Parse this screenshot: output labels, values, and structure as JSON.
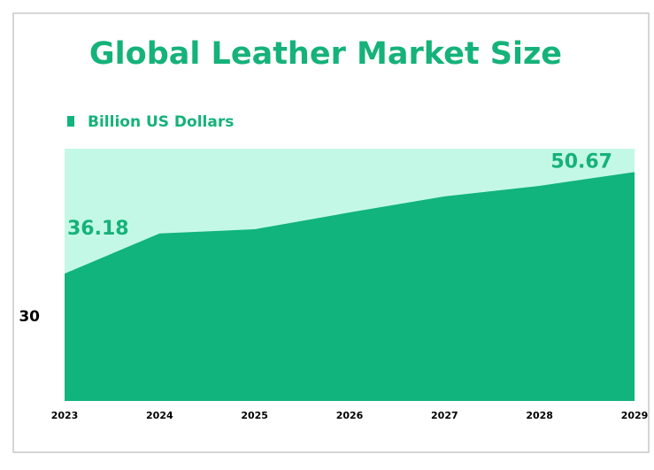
{
  "chart_data": {
    "type": "area",
    "title": "Global Leather Market Size",
    "categories": [
      "2023",
      "2024",
      "2025",
      "2026",
      "2027",
      "2028",
      "2029"
    ],
    "series": [
      {
        "name": "Billion US Dollars",
        "color": "#10b47c",
        "values": [
          36.18,
          41.9,
          42.5,
          44.9,
          47.2,
          48.7,
          50.67
        ]
      }
    ],
    "plot_background": "#c4f8e6",
    "ylim": [
      18,
      54
    ],
    "yticks": [
      30
    ],
    "legend": "top-left"
  }
}
